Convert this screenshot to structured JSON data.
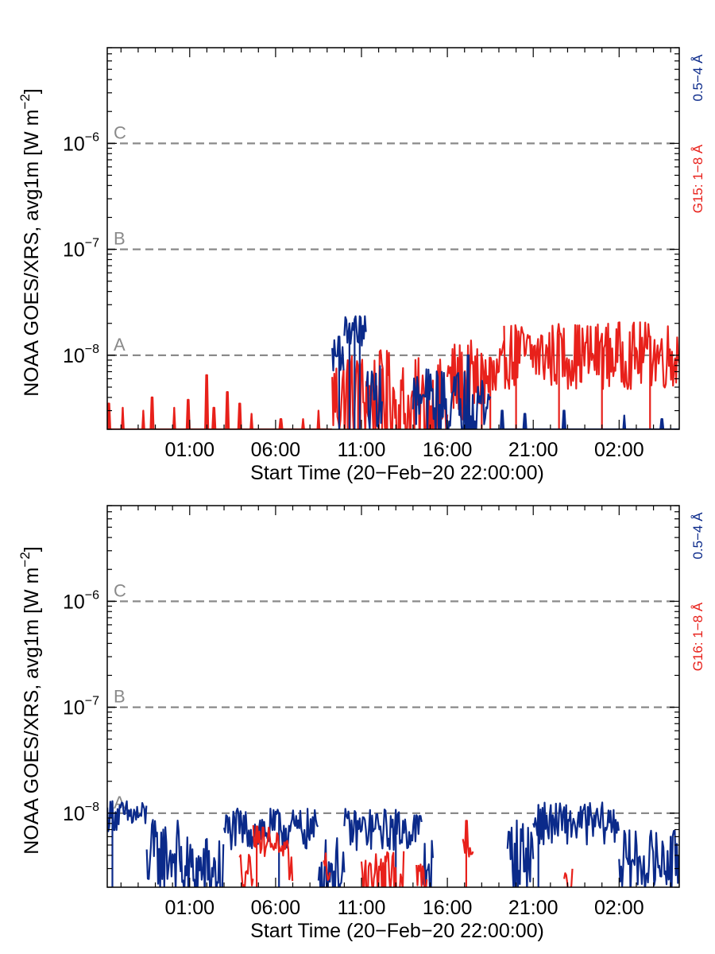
{
  "colors": {
    "axis": "#000000",
    "background": "#ffffff",
    "flare_lines": "#8a8a8a",
    "long_channel": "#e8211b",
    "short_channel": "#0b2a8a"
  },
  "chart_data": [
    {
      "type": "line",
      "y_scale": "log",
      "ylim": [
        2e-09,
        8e-06
      ],
      "y_ticks": [
        {
          "value": 1e-08,
          "label": "10",
          "exp": "−8"
        },
        {
          "value": 1e-07,
          "label": "10",
          "exp": "−7"
        },
        {
          "value": 1e-06,
          "label": "10",
          "exp": "−6"
        }
      ],
      "xlim_hours": [
        -3.8,
        29.5
      ],
      "x_ticks": [
        {
          "value": 1,
          "label": "01:00"
        },
        {
          "value": 6,
          "label": "06:00"
        },
        {
          "value": 11,
          "label": "11:00"
        },
        {
          "value": 16,
          "label": "16:00"
        },
        {
          "value": 21,
          "label": "21:00"
        },
        {
          "value": 26,
          "label": "02:00"
        }
      ],
      "xlabel": "Start Time (20−Feb−20 22:00:00)",
      "ylabel": "NOAA GOES/XRS, avg1m [W m",
      "ylabel_exp": "−2",
      "ylabel_close": "]",
      "flare_classes": [
        {
          "label": "A",
          "value": 1e-08
        },
        {
          "label": "B",
          "value": 1e-07
        },
        {
          "label": "C",
          "value": 1e-06
        }
      ],
      "right_labels": {
        "long": "G15: 1−8 Å",
        "short": "0.5−4 Å"
      },
      "series": [
        {
          "name": "G15: 1−8 Å",
          "channel": "long",
          "segments": [
            {
              "t0": -3.8,
              "t1": 9.3,
              "level": 2e-09,
              "spread": 0.0,
              "spikes": [
                [
                  -3.7,
                  3.5e-09
                ],
                [
                  -2.9,
                  3.2e-09
                ],
                [
                  -1.7,
                  3e-09
                ],
                [
                  -1.2,
                  4e-09
                ],
                [
                  0.1,
                  3.2e-09
                ],
                [
                  0.9,
                  3.8e-09
                ],
                [
                  2.0,
                  6.5e-09
                ],
                [
                  2.4,
                  3.2e-09
                ],
                [
                  3.2,
                  4.5e-09
                ],
                [
                  3.9,
                  3.5e-09
                ],
                [
                  4.6,
                  2.8e-09
                ],
                [
                  6.3,
                  2.5e-09
                ],
                [
                  7.6,
                  2.5e-09
                ],
                [
                  8.5,
                  3e-09
                ]
              ]
            },
            {
              "t0": 9.3,
              "t1": 13.0,
              "level": 4e-09,
              "spread": 0.45,
              "spikes": [
                [
                  10.2,
                  9e-09
                ],
                [
                  10.8,
                  8e-09
                ],
                [
                  12.2,
                  7.5e-09
                ],
                [
                  12.5,
                  6.5e-09
                ]
              ]
            },
            {
              "t0": 13.0,
              "t1": 16.0,
              "level": 3e-09,
              "spread": 0.5,
              "spikes": [
                [
                  15.6,
                  5e-09
                ]
              ]
            },
            {
              "t0": 16.0,
              "t1": 19.3,
              "level": 5.5e-09,
              "spread": 0.4,
              "spikes": [
                [
                  18.0,
                  9e-09
                ],
                [
                  18.5,
                  9.5e-09
                ]
              ]
            },
            {
              "t0": 19.3,
              "t1": 29.5,
              "level": 1e-08,
              "spread": 0.32,
              "spikes": [
                [
                  20.0,
                  1.7e-08
                ],
                [
                  22.5,
                  1.6e-08
                ],
                [
                  25.0,
                  1.6e-08
                ],
                [
                  27.8,
                  1.5e-08
                ]
              ]
            }
          ]
        },
        {
          "name": "0.5−4 Å",
          "channel": "short",
          "segments": [
            {
              "t0": 9.3,
              "t1": 10.0,
              "level": 1e-08,
              "spread": 0.15,
              "spikes": [
                [
                  9.7,
                  1.5e-08
                ]
              ]
            },
            {
              "t0": 10.0,
              "t1": 11.3,
              "level": 1.7e-08,
              "spread": 0.15,
              "spikes": [
                [
                  10.3,
                  2e-08
                ],
                [
                  10.6,
                  2.2e-08
                ],
                [
                  10.9,
                  2e-08
                ]
              ]
            },
            {
              "t0": 11.3,
              "t1": 12.2,
              "level": 4e-09,
              "spread": 0.3,
              "spikes": []
            },
            {
              "t0": 14.0,
              "t1": 18.5,
              "level": 3.5e-09,
              "spread": 0.35,
              "spikes": [
                [
                  17.2,
                  1e-08
                ]
              ]
            },
            {
              "t0": 18.5,
              "t1": 29.5,
              "level": 2e-09,
              "spread": 0.0,
              "spikes": [
                [
                  19.2,
                  3e-09
                ],
                [
                  20.5,
                  2.8e-09
                ],
                [
                  22.8,
                  3e-09
                ],
                [
                  26.3,
                  2.7e-09
                ],
                [
                  28.5,
                  2.5e-09
                ]
              ]
            }
          ]
        }
      ]
    },
    {
      "type": "line",
      "y_scale": "log",
      "ylim": [
        2e-09,
        8e-06
      ],
      "y_ticks": [
        {
          "value": 1e-08,
          "label": "10",
          "exp": "−8"
        },
        {
          "value": 1e-07,
          "label": "10",
          "exp": "−7"
        },
        {
          "value": 1e-06,
          "label": "10",
          "exp": "−6"
        }
      ],
      "xlim_hours": [
        -3.8,
        29.5
      ],
      "x_ticks": [
        {
          "value": 1,
          "label": "01:00"
        },
        {
          "value": 6,
          "label": "06:00"
        },
        {
          "value": 11,
          "label": "11:00"
        },
        {
          "value": 16,
          "label": "16:00"
        },
        {
          "value": 21,
          "label": "21:00"
        },
        {
          "value": 26,
          "label": "02:00"
        }
      ],
      "xlabel": "Start Time (20−Feb−20 22:00:00)",
      "ylabel": "NOAA GOES/XRS, avg1m [W m",
      "ylabel_exp": "−2",
      "ylabel_close": "]",
      "flare_classes": [
        {
          "label": "A",
          "value": 1e-08
        },
        {
          "label": "B",
          "value": 1e-07
        },
        {
          "label": "C",
          "value": 1e-06
        }
      ],
      "right_labels": {
        "long": "G16: 1−8 Å",
        "short": "0.5−4 Å"
      },
      "series": [
        {
          "name": "0.5−4 Å",
          "channel": "short",
          "segments": [
            {
              "t0": -3.8,
              "t1": -1.5,
              "level": 9.5e-09,
              "spread": 0.15,
              "spikes": [
                [
                  -3.5,
                  1.3e-08
                ]
              ]
            },
            {
              "t0": -1.5,
              "t1": 0.5,
              "level": 4e-09,
              "spread": 0.35,
              "spikes": []
            },
            {
              "t0": 0.5,
              "t1": 3.0,
              "level": 2.8e-09,
              "spread": 0.35,
              "spikes": []
            },
            {
              "t0": 3.0,
              "t1": 8.5,
              "level": 7e-09,
              "spread": 0.2,
              "spikes": [
                [
                  6.2,
                  1e-08
                ]
              ]
            },
            {
              "t0": 8.5,
              "t1": 10.0,
              "level": 3e-09,
              "spread": 0.3,
              "spikes": []
            },
            {
              "t0": 10.0,
              "t1": 14.5,
              "level": 7e-09,
              "spread": 0.2,
              "spikes": [
                [
                  13.0,
                  9.5e-09
                ]
              ]
            },
            {
              "t0": 14.5,
              "t1": 15.2,
              "level": 3e-09,
              "spread": 0.3,
              "spikes": []
            },
            {
              "t0": 19.5,
              "t1": 21.0,
              "level": 4e-09,
              "spread": 0.35,
              "spikes": []
            },
            {
              "t0": 21.0,
              "t1": 26.0,
              "level": 8e-09,
              "spread": 0.2,
              "spikes": [
                [
                  21.3,
                  1.2e-08
                ]
              ]
            },
            {
              "t0": 26.0,
              "t1": 29.5,
              "level": 3.5e-09,
              "spread": 0.3,
              "spikes": [
                [
                  29.0,
                  6e-09
                ]
              ]
            }
          ]
        },
        {
          "name": "G16: 1−8 Å",
          "channel": "long",
          "segments": [
            {
              "t0": 3.9,
              "t1": 4.7,
              "level": 3e-09,
              "spread": 0.2,
              "spikes": []
            },
            {
              "t0": 4.7,
              "t1": 6.2,
              "level": 5.5e-09,
              "spread": 0.15,
              "spikes": [
                [
                  4.9,
                  7.5e-09
                ]
              ]
            },
            {
              "t0": 6.2,
              "t1": 7.0,
              "level": 3.5e-09,
              "spread": 0.2,
              "spikes": []
            },
            {
              "t0": 8.8,
              "t1": 9.2,
              "level": 3e-09,
              "spread": 0.15,
              "spikes": []
            },
            {
              "t0": 11.0,
              "t1": 13.5,
              "level": 2.5e-09,
              "spread": 0.25,
              "spikes": [
                [
                  12.4,
                  3.5e-09
                ]
              ]
            },
            {
              "t0": 14.2,
              "t1": 14.8,
              "level": 2.5e-09,
              "spread": 0.2,
              "spikes": []
            },
            {
              "t0": 16.9,
              "t1": 17.5,
              "level": 5e-09,
              "spread": 0.15,
              "spikes": [
                [
                  17.1,
                  8.5e-09
                ]
              ]
            },
            {
              "t0": 22.8,
              "t1": 23.3,
              "level": 2.5e-09,
              "spread": 0.15,
              "spikes": []
            }
          ]
        }
      ]
    }
  ]
}
